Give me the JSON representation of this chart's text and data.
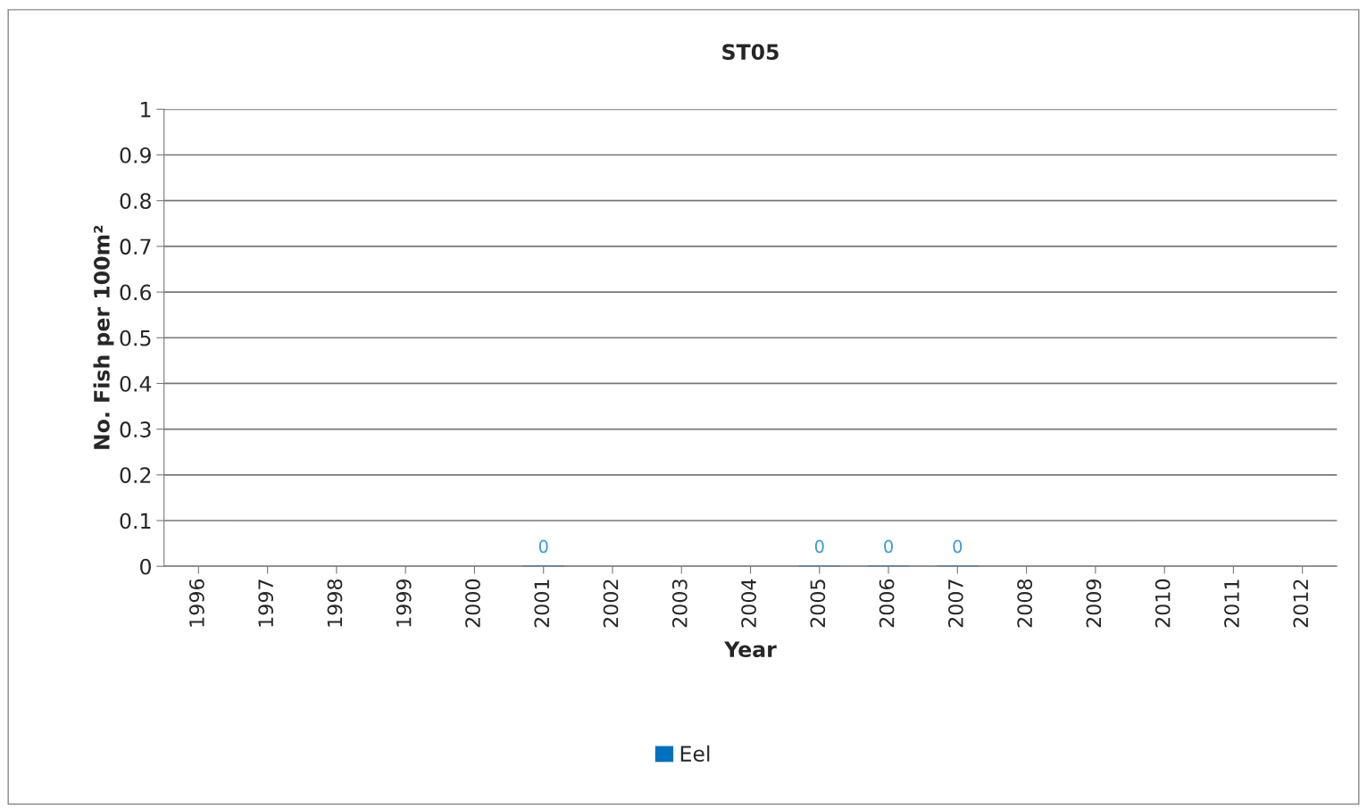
{
  "chart_data": {
    "type": "bar",
    "title": "ST05",
    "xlabel": "Year",
    "ylabel": "No. Fish per 100m²",
    "categories": [
      "1996",
      "1997",
      "1998",
      "1999",
      "2000",
      "2001",
      "2002",
      "2003",
      "2004",
      "2005",
      "2006",
      "2007",
      "2008",
      "2009",
      "2010",
      "2011",
      "2012"
    ],
    "series": [
      {
        "name": "Eel",
        "color": "#0070c0",
        "values": [
          null,
          null,
          null,
          null,
          null,
          0,
          null,
          null,
          null,
          0,
          0,
          0,
          null,
          null,
          null,
          null,
          null
        ]
      }
    ],
    "ylim": [
      0,
      1
    ],
    "yticks": [
      0,
      0.1,
      0.2,
      0.3,
      0.4,
      0.5,
      0.6,
      0.7,
      0.8,
      0.9,
      1
    ],
    "grid": "y",
    "legend": "bottom",
    "data_labels": true
  }
}
